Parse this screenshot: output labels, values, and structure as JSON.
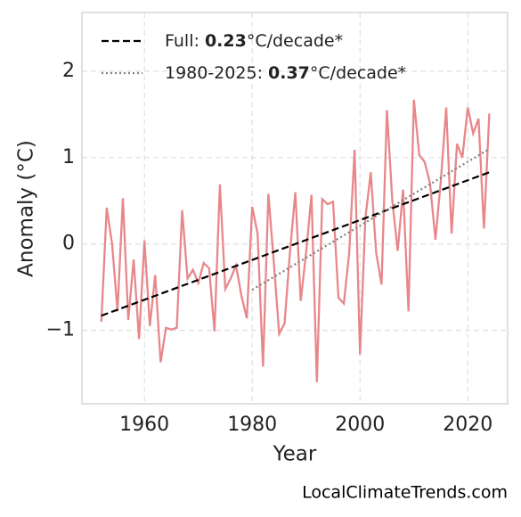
{
  "chart_data": {
    "type": "line",
    "x_label": "Year",
    "y_label": "Anomaly (°C)",
    "watermark": "LocalClimateTrends.com",
    "xlim": [
      1948.4,
      2027.4
    ],
    "ylim": [
      -1.85,
      2.68
    ],
    "xticks": [
      1960,
      1980,
      2000,
      2020
    ],
    "yticks": [
      {
        "value": -1,
        "label": "−1"
      },
      0,
      1,
      2
    ],
    "grid": true,
    "legend": "upper left",
    "series": [
      {
        "name": null,
        "color": "#e8878a",
        "style": "solid",
        "x": [
          1952,
          1953,
          1954,
          1955,
          1956,
          1957,
          1958,
          1959,
          1960,
          1961,
          1962,
          1963,
          1964,
          1965,
          1966,
          1967,
          1968,
          1969,
          1970,
          1971,
          1972,
          1973,
          1974,
          1975,
          1976,
          1977,
          1978,
          1979,
          1980,
          1981,
          1982,
          1983,
          1984,
          1985,
          1986,
          1987,
          1988,
          1989,
          1990,
          1991,
          1992,
          1993,
          1994,
          1995,
          1996,
          1997,
          1998,
          1999,
          2000,
          2001,
          2002,
          2003,
          2004,
          2005,
          2006,
          2007,
          2008,
          2009,
          2010,
          2011,
          2012,
          2013,
          2014,
          2015,
          2016,
          2017,
          2018,
          2019,
          2020,
          2021,
          2022,
          2023,
          2024
        ],
        "values": [
          -0.9,
          0.42,
          0.0,
          -0.78,
          0.53,
          -0.88,
          -0.18,
          -1.1,
          0.04,
          -0.95,
          -0.36,
          -1.37,
          -0.97,
          -0.99,
          -0.97,
          0.39,
          -0.4,
          -0.3,
          -0.45,
          -0.22,
          -0.28,
          -1.01,
          0.69,
          -0.52,
          -0.4,
          -0.25,
          -0.6,
          -0.86,
          0.43,
          0.12,
          -1.42,
          0.58,
          -0.2,
          -1.04,
          -0.92,
          -0.1,
          0.6,
          -0.66,
          -0.1,
          0.57,
          -1.6,
          0.52,
          0.46,
          0.49,
          -0.62,
          -0.69,
          -0.1,
          1.09,
          -1.28,
          0.3,
          0.83,
          -0.1,
          -0.47,
          1.55,
          0.5,
          -0.08,
          0.63,
          -0.78,
          1.67,
          1.03,
          0.95,
          0.7,
          0.05,
          0.73,
          1.58,
          0.12,
          1.16,
          1.0,
          1.58,
          1.28,
          1.45,
          0.18,
          1.51
        ]
      },
      {
        "name": [
          "Full: ",
          "0.23",
          "°C/decade*"
        ],
        "color": "#000000",
        "style": "dashed",
        "x": [
          1952,
          2024
        ],
        "values": [
          -0.83,
          0.83
        ]
      },
      {
        "name": [
          "1980-2025: ",
          "0.37",
          "°C/decade*"
        ],
        "color": "#808080",
        "style": "dotted",
        "x": [
          1980,
          2024
        ],
        "values": [
          -0.53,
          1.1
        ]
      }
    ]
  }
}
